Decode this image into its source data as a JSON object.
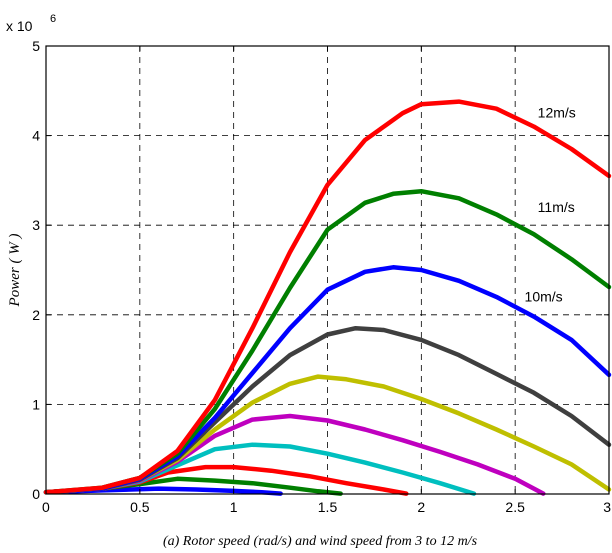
{
  "chart_data": {
    "type": "line",
    "title": "",
    "caption": "(a) Rotor speed (rad/s) and wind speed from 3 to 12 m/s",
    "ylabel": "Power ( W )",
    "xlabel": "",
    "y_scale_label": "x 10",
    "y_scale_exponent": "6",
    "xlim": [
      0,
      3
    ],
    "ylim": [
      0,
      5
    ],
    "grid": true,
    "x_ticks": [
      "0",
      "0.5",
      "1",
      "1.5",
      "2",
      "2.5",
      "3"
    ],
    "y_ticks": [
      "0",
      "1",
      "2",
      "3",
      "4",
      "5"
    ],
    "annotations": [
      {
        "text": "12m/s",
        "x": 2.62,
        "y": 4.2
      },
      {
        "text": "11m/s",
        "x": 2.62,
        "y": 3.15
      },
      {
        "text": "10m/s",
        "x": 2.55,
        "y": 2.15
      }
    ],
    "series": [
      {
        "color": "#0000ff",
        "points": [
          [
            0,
            0.02
          ],
          [
            0.3,
            0.04
          ],
          [
            0.6,
            0.06
          ],
          [
            0.8,
            0.05
          ],
          [
            1.0,
            0.035
          ],
          [
            1.15,
            0.02
          ],
          [
            1.25,
            0.005
          ]
        ]
      },
      {
        "color": "#007f00",
        "points": [
          [
            0,
            0.02
          ],
          [
            0.3,
            0.06
          ],
          [
            0.5,
            0.11
          ],
          [
            0.7,
            0.17
          ],
          [
            0.9,
            0.15
          ],
          [
            1.1,
            0.12
          ],
          [
            1.3,
            0.07
          ],
          [
            1.45,
            0.03
          ],
          [
            1.57,
            0.005
          ]
        ]
      },
      {
        "color": "#ff0000",
        "points": [
          [
            0,
            0.02
          ],
          [
            0.3,
            0.06
          ],
          [
            0.5,
            0.13
          ],
          [
            0.65,
            0.24
          ],
          [
            0.85,
            0.3
          ],
          [
            1.0,
            0.3
          ],
          [
            1.2,
            0.26
          ],
          [
            1.4,
            0.2
          ],
          [
            1.6,
            0.12
          ],
          [
            1.8,
            0.05
          ],
          [
            1.92,
            0.005
          ]
        ]
      },
      {
        "color": "#00bfbf",
        "points": [
          [
            0,
            0.02
          ],
          [
            0.3,
            0.06
          ],
          [
            0.5,
            0.14
          ],
          [
            0.7,
            0.32
          ],
          [
            0.9,
            0.5
          ],
          [
            1.1,
            0.55
          ],
          [
            1.3,
            0.53
          ],
          [
            1.5,
            0.45
          ],
          [
            1.7,
            0.35
          ],
          [
            1.9,
            0.24
          ],
          [
            2.1,
            0.12
          ],
          [
            2.28,
            0.005
          ]
        ]
      },
      {
        "color": "#bf00bf",
        "points": [
          [
            0,
            0.02
          ],
          [
            0.3,
            0.06
          ],
          [
            0.5,
            0.15
          ],
          [
            0.7,
            0.36
          ],
          [
            0.9,
            0.65
          ],
          [
            1.1,
            0.83
          ],
          [
            1.3,
            0.87
          ],
          [
            1.5,
            0.82
          ],
          [
            1.7,
            0.72
          ],
          [
            1.9,
            0.6
          ],
          [
            2.1,
            0.47
          ],
          [
            2.3,
            0.33
          ],
          [
            2.5,
            0.17
          ],
          [
            2.65,
            0.005
          ]
        ]
      },
      {
        "color": "#bfbf00",
        "points": [
          [
            0,
            0.02
          ],
          [
            0.3,
            0.06
          ],
          [
            0.5,
            0.16
          ],
          [
            0.7,
            0.38
          ],
          [
            0.9,
            0.72
          ],
          [
            1.1,
            1.02
          ],
          [
            1.3,
            1.23
          ],
          [
            1.45,
            1.31
          ],
          [
            1.6,
            1.28
          ],
          [
            1.8,
            1.2
          ],
          [
            2.0,
            1.06
          ],
          [
            2.2,
            0.9
          ],
          [
            2.4,
            0.72
          ],
          [
            2.6,
            0.53
          ],
          [
            2.8,
            0.33
          ],
          [
            3.0,
            0.05
          ]
        ]
      },
      {
        "color": "#3f3f3f",
        "points": [
          [
            0,
            0.02
          ],
          [
            0.3,
            0.06
          ],
          [
            0.5,
            0.16
          ],
          [
            0.7,
            0.4
          ],
          [
            0.9,
            0.8
          ],
          [
            1.1,
            1.2
          ],
          [
            1.3,
            1.55
          ],
          [
            1.5,
            1.78
          ],
          [
            1.65,
            1.85
          ],
          [
            1.8,
            1.83
          ],
          [
            2.0,
            1.72
          ],
          [
            2.2,
            1.55
          ],
          [
            2.4,
            1.34
          ],
          [
            2.6,
            1.13
          ],
          [
            2.8,
            0.87
          ],
          [
            3.0,
            0.55
          ]
        ]
      },
      {
        "color": "#0000ff",
        "points": [
          [
            0,
            0.02
          ],
          [
            0.3,
            0.06
          ],
          [
            0.5,
            0.17
          ],
          [
            0.7,
            0.42
          ],
          [
            0.9,
            0.85
          ],
          [
            1.1,
            1.35
          ],
          [
            1.3,
            1.85
          ],
          [
            1.5,
            2.28
          ],
          [
            1.7,
            2.48
          ],
          [
            1.85,
            2.53
          ],
          [
            2.0,
            2.5
          ],
          [
            2.2,
            2.38
          ],
          [
            2.4,
            2.2
          ],
          [
            2.6,
            1.98
          ],
          [
            2.8,
            1.72
          ],
          [
            3.0,
            1.33
          ]
        ]
      },
      {
        "color": "#007f00",
        "points": [
          [
            0,
            0.02
          ],
          [
            0.3,
            0.07
          ],
          [
            0.5,
            0.18
          ],
          [
            0.7,
            0.45
          ],
          [
            0.9,
            0.95
          ],
          [
            1.1,
            1.6
          ],
          [
            1.3,
            2.3
          ],
          [
            1.5,
            2.95
          ],
          [
            1.7,
            3.25
          ],
          [
            1.85,
            3.35
          ],
          [
            2.0,
            3.38
          ],
          [
            2.2,
            3.3
          ],
          [
            2.4,
            3.12
          ],
          [
            2.6,
            2.9
          ],
          [
            2.8,
            2.62
          ],
          [
            3.0,
            2.31
          ]
        ]
      },
      {
        "color": "#ff0000",
        "points": [
          [
            0,
            0.02
          ],
          [
            0.3,
            0.07
          ],
          [
            0.5,
            0.18
          ],
          [
            0.7,
            0.48
          ],
          [
            0.9,
            1.05
          ],
          [
            1.1,
            1.85
          ],
          [
            1.3,
            2.7
          ],
          [
            1.5,
            3.45
          ],
          [
            1.7,
            3.95
          ],
          [
            1.9,
            4.25
          ],
          [
            2.0,
            4.35
          ],
          [
            2.2,
            4.38
          ],
          [
            2.4,
            4.3
          ],
          [
            2.6,
            4.1
          ],
          [
            2.8,
            3.85
          ],
          [
            3.0,
            3.55
          ]
        ]
      }
    ]
  }
}
